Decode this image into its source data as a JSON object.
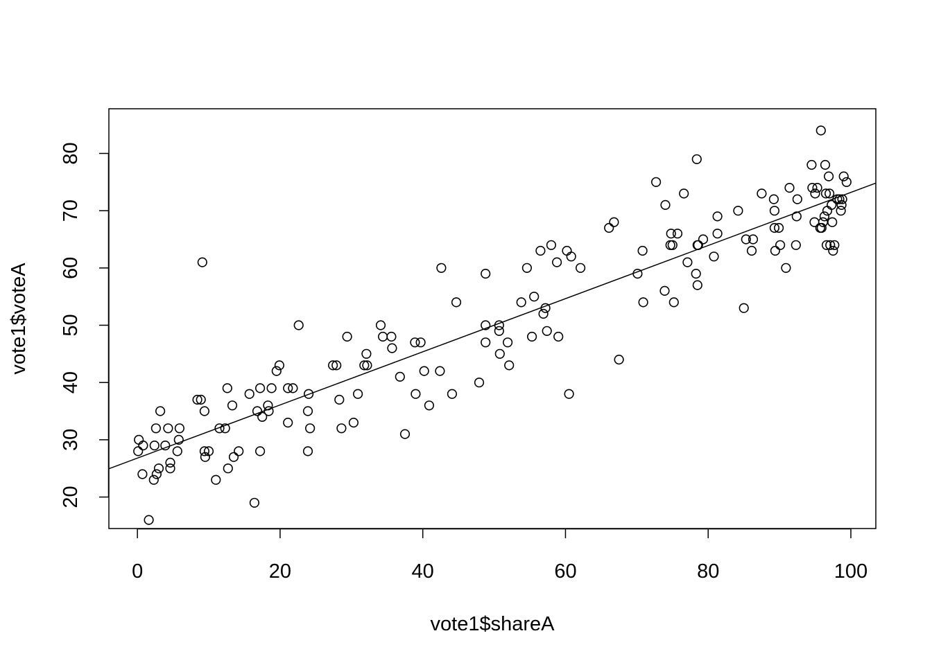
{
  "chart_data": {
    "type": "scatter",
    "title": "",
    "xlabel": "vote1$shareA",
    "ylabel": "vote1$voteA",
    "xlim": [
      -4,
      103.5
    ],
    "ylim": [
      14.5,
      87.8
    ],
    "xticks": [
      0,
      20,
      40,
      60,
      80,
      100
    ],
    "yticks": [
      20,
      30,
      40,
      50,
      60,
      70,
      80
    ],
    "grid": false,
    "legend": "none",
    "colors": {
      "points": "#000000",
      "line": "#000000",
      "frame": "#000000",
      "background": "#ffffff"
    },
    "fit_line": {
      "intercept": 26.8,
      "slope": 0.464
    },
    "points": [
      [
        0.1,
        28
      ],
      [
        0.2,
        30
      ],
      [
        0.7,
        24
      ],
      [
        0.8,
        29
      ],
      [
        1.6,
        16
      ],
      [
        2.3,
        23
      ],
      [
        2.4,
        29
      ],
      [
        2.6,
        32
      ],
      [
        2.7,
        24
      ],
      [
        3.0,
        25
      ],
      [
        3.2,
        35
      ],
      [
        3.9,
        29
      ],
      [
        4.3,
        32
      ],
      [
        4.6,
        26
      ],
      [
        4.6,
        25
      ],
      [
        5.6,
        28
      ],
      [
        5.8,
        30
      ],
      [
        5.9,
        32
      ],
      [
        8.4,
        37
      ],
      [
        8.9,
        37
      ],
      [
        9.1,
        61
      ],
      [
        9.4,
        35
      ],
      [
        9.4,
        28
      ],
      [
        9.5,
        27
      ],
      [
        10.0,
        28
      ],
      [
        11.0,
        23
      ],
      [
        11.5,
        32
      ],
      [
        12.3,
        32
      ],
      [
        12.6,
        39
      ],
      [
        12.7,
        25
      ],
      [
        13.3,
        36
      ],
      [
        13.5,
        27
      ],
      [
        14.2,
        28
      ],
      [
        15.7,
        38
      ],
      [
        16.4,
        19
      ],
      [
        16.8,
        35
      ],
      [
        17.2,
        39
      ],
      [
        17.2,
        28
      ],
      [
        17.5,
        34
      ],
      [
        18.3,
        36
      ],
      [
        18.4,
        35
      ],
      [
        18.8,
        39
      ],
      [
        19.5,
        42
      ],
      [
        19.9,
        43
      ],
      [
        21.1,
        33
      ],
      [
        21.1,
        39
      ],
      [
        21.8,
        39
      ],
      [
        22.6,
        50
      ],
      [
        23.9,
        28
      ],
      [
        23.9,
        35
      ],
      [
        24.0,
        38
      ],
      [
        24.2,
        32
      ],
      [
        27.4,
        43
      ],
      [
        27.9,
        43
      ],
      [
        28.3,
        37
      ],
      [
        28.6,
        32
      ],
      [
        29.4,
        48
      ],
      [
        30.3,
        33
      ],
      [
        30.9,
        38
      ],
      [
        31.8,
        43
      ],
      [
        32.1,
        45
      ],
      [
        32.2,
        43
      ],
      [
        34.1,
        50
      ],
      [
        34.4,
        48
      ],
      [
        35.6,
        48
      ],
      [
        35.7,
        46
      ],
      [
        36.8,
        41
      ],
      [
        37.5,
        31
      ],
      [
        38.9,
        47
      ],
      [
        39.0,
        38
      ],
      [
        39.7,
        47
      ],
      [
        40.2,
        42
      ],
      [
        40.9,
        36
      ],
      [
        42.4,
        42
      ],
      [
        42.6,
        60
      ],
      [
        44.1,
        38
      ],
      [
        44.7,
        54
      ],
      [
        47.9,
        40
      ],
      [
        48.8,
        59
      ],
      [
        48.8,
        50
      ],
      [
        48.8,
        47
      ],
      [
        50.7,
        50
      ],
      [
        50.7,
        49
      ],
      [
        50.8,
        45
      ],
      [
        51.9,
        47
      ],
      [
        52.1,
        43
      ],
      [
        53.8,
        54
      ],
      [
        54.6,
        60
      ],
      [
        55.3,
        48
      ],
      [
        55.6,
        55
      ],
      [
        56.5,
        63
      ],
      [
        56.9,
        52
      ],
      [
        57.2,
        53
      ],
      [
        57.4,
        49
      ],
      [
        58.0,
        64
      ],
      [
        58.8,
        61
      ],
      [
        59.0,
        48
      ],
      [
        60.2,
        63
      ],
      [
        60.5,
        38
      ],
      [
        60.8,
        62
      ],
      [
        62.1,
        60
      ],
      [
        66.1,
        67
      ],
      [
        66.8,
        68
      ],
      [
        67.5,
        44
      ],
      [
        70.1,
        59
      ],
      [
        70.8,
        63
      ],
      [
        70.9,
        54
      ],
      [
        72.7,
        75
      ],
      [
        73.9,
        56
      ],
      [
        74.0,
        71
      ],
      [
        74.7,
        64
      ],
      [
        74.8,
        66
      ],
      [
        75.0,
        64
      ],
      [
        75.2,
        54
      ],
      [
        75.7,
        66
      ],
      [
        76.6,
        73
      ],
      [
        77.1,
        61
      ],
      [
        78.3,
        59
      ],
      [
        78.4,
        79
      ],
      [
        78.5,
        64
      ],
      [
        78.5,
        57
      ],
      [
        78.6,
        64
      ],
      [
        79.3,
        65
      ],
      [
        80.8,
        62
      ],
      [
        81.3,
        69
      ],
      [
        81.3,
        66
      ],
      [
        84.2,
        70
      ],
      [
        85.0,
        53
      ],
      [
        85.3,
        65
      ],
      [
        86.1,
        63
      ],
      [
        86.3,
        65
      ],
      [
        87.5,
        73
      ],
      [
        89.2,
        72
      ],
      [
        89.3,
        70
      ],
      [
        89.3,
        67
      ],
      [
        89.4,
        63
      ],
      [
        89.9,
        67
      ],
      [
        90.1,
        64
      ],
      [
        90.9,
        60
      ],
      [
        91.4,
        74
      ],
      [
        92.3,
        64
      ],
      [
        92.4,
        69
      ],
      [
        92.5,
        72
      ],
      [
        94.5,
        78
      ],
      [
        94.6,
        74
      ],
      [
        94.9,
        68
      ],
      [
        95.0,
        73
      ],
      [
        95.3,
        74
      ],
      [
        95.7,
        67
      ],
      [
        95.8,
        84
      ],
      [
        95.9,
        67
      ],
      [
        96.1,
        68
      ],
      [
        96.3,
        69
      ],
      [
        96.4,
        78
      ],
      [
        96.5,
        73
      ],
      [
        96.6,
        64
      ],
      [
        96.7,
        70
      ],
      [
        96.9,
        76
      ],
      [
        97.0,
        73
      ],
      [
        97.1,
        64
      ],
      [
        97.3,
        71
      ],
      [
        97.4,
        68
      ],
      [
        97.5,
        63
      ],
      [
        97.7,
        64
      ],
      [
        98.1,
        72
      ],
      [
        98.4,
        72
      ],
      [
        98.6,
        70
      ],
      [
        98.7,
        71
      ],
      [
        98.8,
        72
      ],
      [
        99.0,
        76
      ],
      [
        99.4,
        75
      ]
    ]
  }
}
